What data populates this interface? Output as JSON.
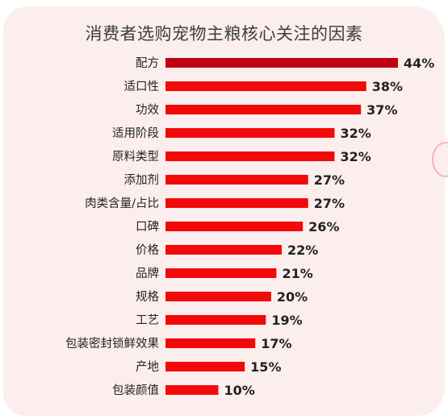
{
  "chart_data": {
    "type": "bar",
    "orientation": "horizontal",
    "title": "消费者选购宠物主粮核心关注的因素",
    "categories": [
      "配方",
      "适口性",
      "功效",
      "适用阶段",
      "原料类型",
      "添加剂",
      "肉类含量/占比",
      "口碑",
      "价格",
      "品牌",
      "规格",
      "工艺",
      "包装密封锁鲜效果",
      "产地",
      "包装颜值"
    ],
    "values": [
      44,
      38,
      37,
      32,
      32,
      27,
      27,
      26,
      22,
      21,
      20,
      19,
      17,
      15,
      10
    ],
    "value_labels": [
      "44%",
      "38%",
      "37%",
      "32%",
      "32%",
      "27%",
      "27%",
      "26%",
      "22%",
      "21%",
      "20%",
      "19%",
      "17%",
      "15%",
      "10%"
    ],
    "xlim": [
      0,
      44
    ],
    "grid": false,
    "colors": {
      "top_bar": "#c00010",
      "bar": "#f20a0a"
    }
  }
}
